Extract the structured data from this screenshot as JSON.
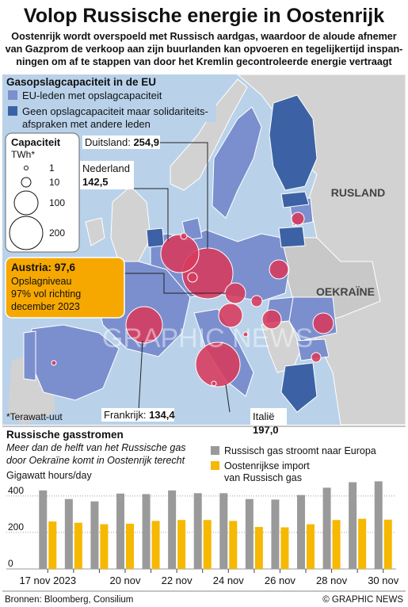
{
  "header": {
    "title": "Volop Russische energie in Oostenrijk",
    "subtitle_lines": [
      "Oostenrijk wordt overspoeld met Russisch aardgas, waardoor de aloude afnemer",
      "van Gazprom de verkoop aan zijn buurlanden kan opvoeren en tegelijkertijd inspan-",
      "ningen om af te stappen van door het Kremlin gecontroleerde energie vertraagt"
    ]
  },
  "map": {
    "section_title": "Gasopslagcapaciteit in de EU",
    "legend": [
      {
        "label_lines": [
          "EU-leden met opslagcapaciteit"
        ],
        "color": "#7b8fce"
      },
      {
        "label_lines": [
          "Geen opslagcapaciteit maar solidariteits-",
          "afspraken met andere leden"
        ],
        "color": "#3c62a5"
      }
    ],
    "capacity_legend": {
      "title": "Capaciteit",
      "unit": "TWh*",
      "sizes": [
        "1",
        "10",
        "100",
        "200"
      ]
    },
    "region_labels": {
      "russia": "RUSLAND",
      "ukraine": "OEKRAÏNE"
    },
    "callouts": {
      "germany": {
        "name": "Duitsland:",
        "value": "254,9"
      },
      "netherlands": {
        "name": "Nederland",
        "value": "142,5"
      },
      "france": {
        "name": "Frankrijk:",
        "value": "134,4"
      },
      "italy": {
        "name": "Italië",
        "value": "197,0"
      }
    },
    "austria_box": {
      "title": "Austria: 97,6",
      "lines": [
        "Opslagniveau",
        "97% vol richting",
        "december 2023"
      ],
      "color": "#f6a800"
    },
    "footnote": "*Terawatt-uut",
    "watermark": "GRAPHIC NEWS",
    "colors": {
      "sea": "#b9d2ea",
      "non_eu_land": "#d2d2d2",
      "eu_storage": "#7b8fce",
      "no_storage": "#3c62a5",
      "bubble": "#d83a5c"
    }
  },
  "flows": {
    "section_title": "Russische gasstromen",
    "description_lines": [
      "Meer dan de helft van het Russische gas",
      "door Oekraïne komt in Oostenrijk terecht"
    ],
    "legend": [
      {
        "label_lines": [
          "Russisch gas stroomt naar Europa"
        ],
        "color": "#9a9a9a"
      },
      {
        "label_lines": [
          "Oostenrijkse import",
          "van Russisch gas"
        ],
        "color": "#f6b800"
      }
    ],
    "unit_label": "Gigawatt hours/day"
  },
  "chart_data": {
    "type": "bar",
    "title": "Russische gasstromen",
    "ylabel": "Gigawatt hours/day",
    "ylim": [
      0,
      460
    ],
    "yticks": [
      0,
      200,
      400
    ],
    "grid": true,
    "categories": [
      "17 nov 2023",
      "18 nov",
      "19 nov",
      "20 nov",
      "21 nov",
      "22 nov",
      "23 nov",
      "24 nov",
      "25 nov",
      "26 nov",
      "27 nov",
      "28 nov",
      "29 nov",
      "30 nov"
    ],
    "xtick_labels": [
      "17 nov 2023",
      "",
      "",
      "20 nov",
      "",
      "22 nov",
      "",
      "24 nov",
      "",
      "26 nov",
      "",
      "28 nov",
      "",
      "30 nov"
    ],
    "series": [
      {
        "name": "Russisch gas stroomt naar Europa",
        "color": "#9a9a9a",
        "values": [
          430,
          383,
          370,
          413,
          410,
          430,
          415,
          415,
          383,
          380,
          405,
          445,
          475,
          480
        ]
      },
      {
        "name": "Oostenrijkse import van Russisch gas",
        "color": "#f6b800",
        "values": [
          260,
          253,
          245,
          248,
          263,
          268,
          268,
          263,
          230,
          228,
          245,
          268,
          275,
          270
        ]
      }
    ]
  },
  "footer": {
    "sources": "Bronnen: Bloomberg, Consilium",
    "credit": "© GRAPHIC NEWS"
  }
}
